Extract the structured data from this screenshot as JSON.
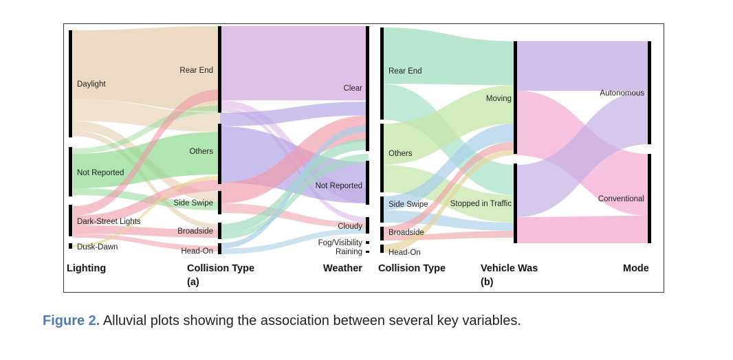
{
  "figure": {
    "caption_label": "Figure 2.",
    "caption_text": " Alluvial plots showing the association between several key variables."
  },
  "panel_a": {
    "label": "(a)",
    "axes": [
      {
        "title": "Lighting",
        "nodes": [
          "Daylight",
          "Not Reported",
          "Dark-Street Lights",
          "Dusk-Dawn"
        ]
      },
      {
        "title": "Collision Type",
        "nodes": [
          "Rear End",
          "Others",
          "Side Swipe",
          "Broadside",
          "Head-On"
        ]
      },
      {
        "title": "Weather",
        "nodes": [
          "Clear",
          "Not Reported",
          "Cloudy",
          "Fog/Visibility",
          "Raining"
        ]
      }
    ]
  },
  "panel_b": {
    "label": "(b)",
    "axes": [
      {
        "title": "Collision Type",
        "nodes": [
          "Rear End",
          "Others",
          "Side Swipe",
          "Broadside",
          "Head-On"
        ]
      },
      {
        "title": "Vehicle Was",
        "nodes": [
          "Moving",
          "Stopped in Traffic"
        ]
      },
      {
        "title": "Mode",
        "nodes": [
          "Autonomous",
          "Conventional"
        ]
      }
    ]
  },
  "colors": {
    "daylight": "#e3cfae",
    "not_reported": "#8fd98f",
    "dark_street_lights": "#ee9aa8",
    "dusk_dawn": "#e8d79a",
    "rear_end": "#d8b0e3",
    "others": "#b8a8e6",
    "side_swipe": "#ee9aa8",
    "broadside": "#9fdcbf",
    "head_on": "#a8cfe8",
    "autonomous": "#c4b0e6",
    "conventional": "#f2a8cf",
    "rear_end_b": "#a6e0c6",
    "others_b": "#c4e6a8",
    "side_swipe_b": "#a8cfe8",
    "broadside_b": "#f0a8a8",
    "head_on_b": "#e6d6a0"
  }
}
